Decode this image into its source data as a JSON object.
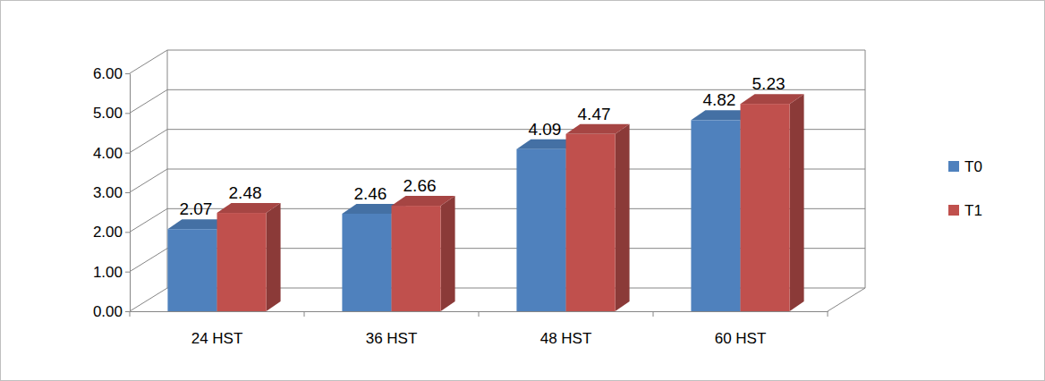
{
  "chart_data": {
    "type": "bar",
    "categories": [
      "24 HST",
      "36 HST",
      "48 HST",
      "60 HST"
    ],
    "series": [
      {
        "name": "T0",
        "color": "#4f81bd",
        "values": [
          2.07,
          2.46,
          4.09,
          4.82
        ]
      },
      {
        "name": "T1",
        "color": "#c0504d",
        "values": [
          2.48,
          2.66,
          4.47,
          5.23
        ]
      }
    ],
    "ylim": [
      0,
      6
    ],
    "yticks": [
      {
        "value": 0,
        "label": "0.00"
      },
      {
        "value": 1,
        "label": "1.00"
      },
      {
        "value": 2,
        "label": "2.00"
      },
      {
        "value": 3,
        "label": "3.00"
      },
      {
        "value": 4,
        "label": "4.00"
      },
      {
        "value": 5,
        "label": "5.00"
      },
      {
        "value": 6,
        "label": "6.00"
      }
    ],
    "grid": true,
    "legend": "right",
    "data_labels": true
  }
}
